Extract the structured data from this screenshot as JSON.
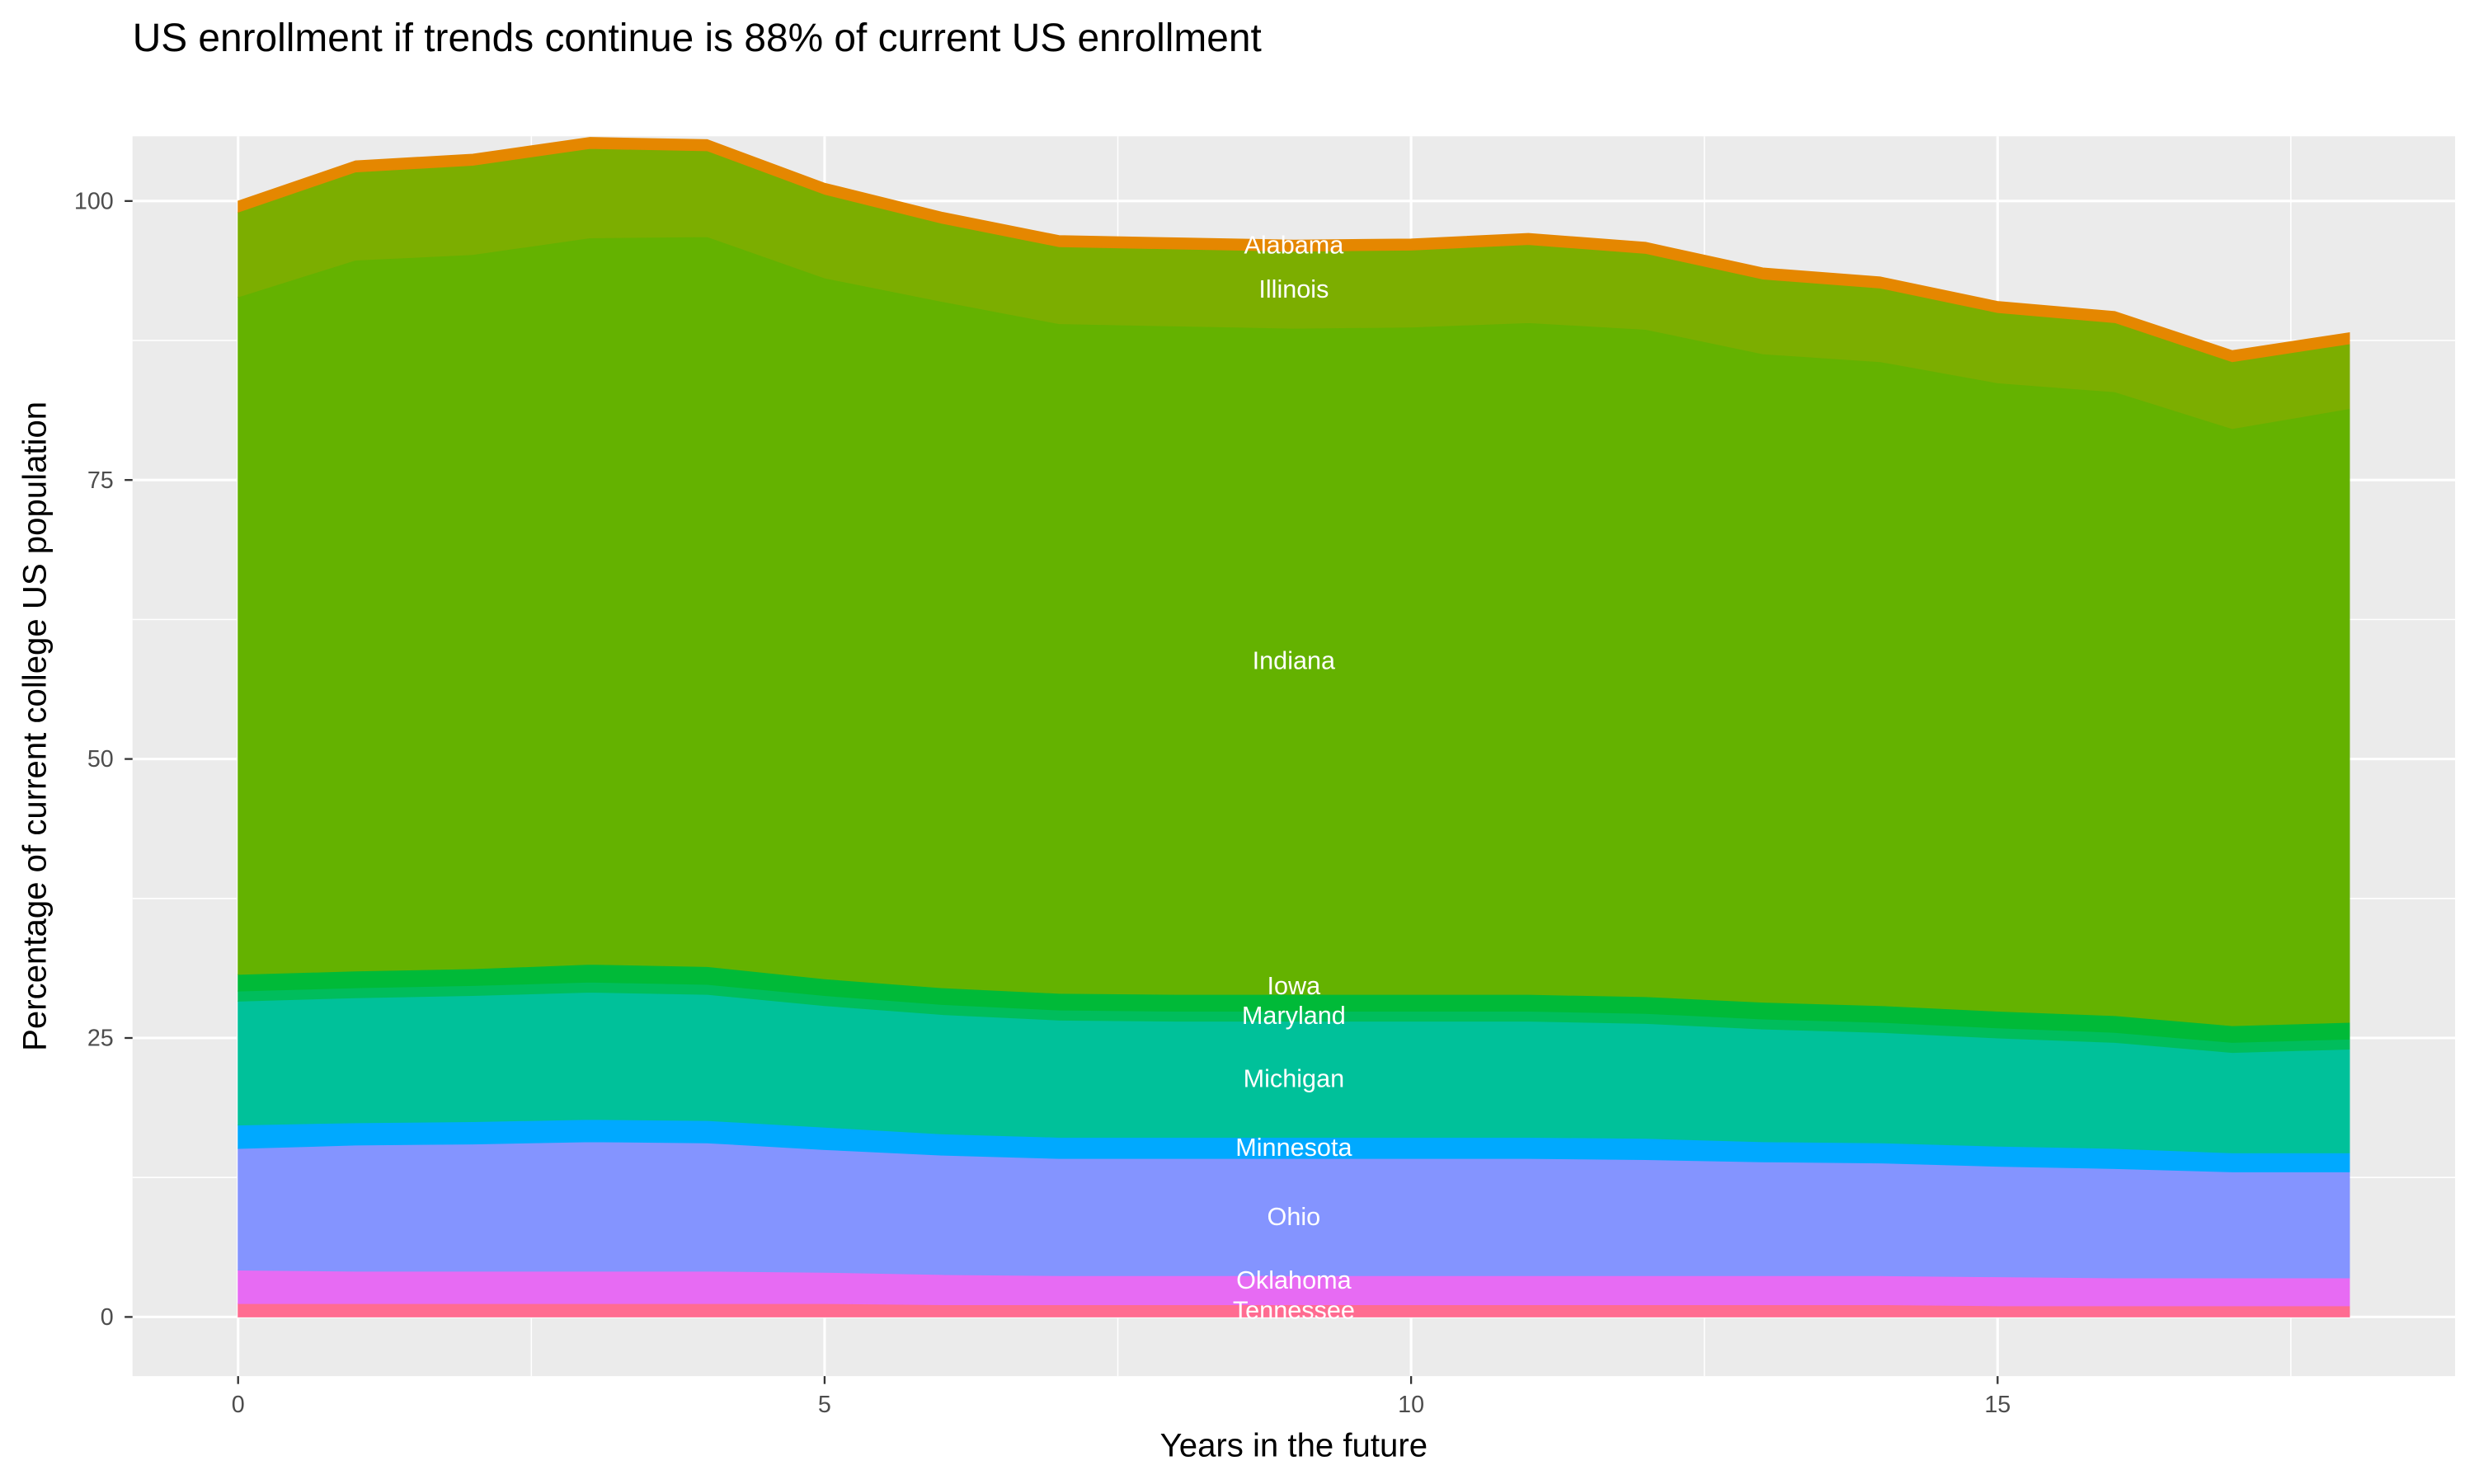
{
  "chart_data": {
    "type": "area",
    "stacked": true,
    "title": "US enrollment if trends continue is 88% of current US enrollment",
    "xlabel": "Years in the future",
    "ylabel": "Percentage of current college US population",
    "xlim": [
      -0.9,
      18.9
    ],
    "ylim": [
      -5.3,
      105.8
    ],
    "x_ticks": [
      0,
      5,
      10,
      15
    ],
    "y_ticks": [
      0,
      25,
      50,
      75,
      100
    ],
    "grid": true,
    "legend": "none",
    "x": [
      0,
      1,
      2,
      3,
      4,
      5,
      6,
      7,
      8,
      9,
      10,
      11,
      12,
      13,
      14,
      15,
      16,
      17,
      18
    ],
    "series": [
      {
        "name": "Tennessee",
        "color": "#FF6C91",
        "values": [
          1.2,
          1.2,
          1.2,
          1.2,
          1.2,
          1.2,
          1.1,
          1.1,
          1.1,
          1.1,
          1.1,
          1.1,
          1.1,
          1.1,
          1.1,
          1.0,
          1.0,
          1.0,
          1.0
        ]
      },
      {
        "name": "Oklahoma",
        "color": "#E76BF3",
        "values": [
          3.0,
          2.9,
          2.9,
          2.9,
          2.9,
          2.8,
          2.7,
          2.6,
          2.6,
          2.6,
          2.6,
          2.6,
          2.6,
          2.6,
          2.6,
          2.6,
          2.5,
          2.5,
          2.5
        ]
      },
      {
        "name": "Ohio",
        "color": "#8494FF",
        "values": [
          10.9,
          11.3,
          11.4,
          11.6,
          11.5,
          11.0,
          10.7,
          10.5,
          10.5,
          10.5,
          10.5,
          10.5,
          10.4,
          10.2,
          10.1,
          9.9,
          9.8,
          9.5,
          9.5
        ]
      },
      {
        "name": "Minnesota",
        "color": "#00A9FF",
        "values": [
          2.1,
          2.0,
          2.0,
          2.0,
          2.0,
          2.0,
          1.9,
          1.9,
          1.9,
          1.9,
          1.9,
          1.9,
          1.9,
          1.8,
          1.8,
          1.8,
          1.8,
          1.7,
          1.7
        ]
      },
      {
        "name": "Michigan",
        "color": "#00C19A",
        "values": [
          11.1,
          11.2,
          11.3,
          11.4,
          11.3,
          10.9,
          10.7,
          10.5,
          10.4,
          10.4,
          10.4,
          10.4,
          10.3,
          10.1,
          9.9,
          9.7,
          9.5,
          9.0,
          9.3
        ]
      },
      {
        "name": "Maryland",
        "color": "#00BD5C",
        "values": [
          0.9,
          0.9,
          0.9,
          0.9,
          0.9,
          0.9,
          0.9,
          0.9,
          0.9,
          0.9,
          0.9,
          0.9,
          0.9,
          0.9,
          0.9,
          0.9,
          0.9,
          0.9,
          0.9
        ]
      },
      {
        "name": "Iowa",
        "color": "#00BA38",
        "values": [
          1.5,
          1.5,
          1.5,
          1.6,
          1.6,
          1.5,
          1.5,
          1.5,
          1.5,
          1.5,
          1.5,
          1.5,
          1.5,
          1.5,
          1.5,
          1.5,
          1.5,
          1.5,
          1.5
        ]
      },
      {
        "name": "Indiana",
        "color": "#64B200",
        "values": [
          60.7,
          63.7,
          64.0,
          65.1,
          65.4,
          62.8,
          61.5,
          60.0,
          59.9,
          59.7,
          59.8,
          60.2,
          59.8,
          58.1,
          57.7,
          56.3,
          55.9,
          53.5,
          55.0
        ]
      },
      {
        "name": "Illinois",
        "color": "#7CAE00",
        "values": [
          7.6,
          7.9,
          8.0,
          8.0,
          7.7,
          7.5,
          7.0,
          6.9,
          6.9,
          6.9,
          6.9,
          7.0,
          6.8,
          6.7,
          6.6,
          6.3,
          6.2,
          6.0,
          5.8
        ]
      },
      {
        "name": "Alabama",
        "color": "#E58700",
        "values": [
          1.0,
          1.0,
          1.0,
          1.0,
          1.0,
          1.0,
          1.0,
          1.0,
          1.0,
          1.0,
          1.0,
          1.0,
          1.0,
          1.0,
          1.0,
          1.0,
          1.0,
          1.0,
          1.0
        ]
      }
    ],
    "label_x": 9
  }
}
